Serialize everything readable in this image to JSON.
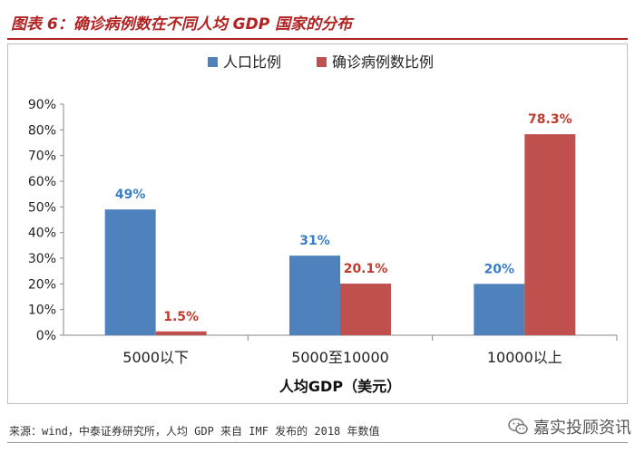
{
  "title": "图表 6：确诊病例数在不同人均 GDP 国家的分布",
  "source": "来源：wind，中泰证券研究所，人均 GDP 来自 IMF 发布的 2018 年数值",
  "watermark": "嘉实投顾资讯",
  "chart_data": {
    "type": "bar",
    "categories": [
      "5000以下",
      "5000至10000",
      "10000以上"
    ],
    "series": [
      {
        "name": "人口比例",
        "values": [
          49,
          31,
          20
        ],
        "labels": [
          "49%",
          "31%",
          "20%"
        ],
        "color": "#4f81bd",
        "label_color": "#3a7dc9"
      },
      {
        "name": "确诊病例数比例",
        "values": [
          1.5,
          20.1,
          78.3
        ],
        "labels": [
          "1.5%",
          "20.1%",
          "78.3%"
        ],
        "color": "#c0504d",
        "label_color": "#c0392b"
      }
    ],
    "xlabel": "人均GDP（美元）",
    "ylabel": "",
    "ylim": [
      0,
      90
    ],
    "yticks": [
      "0%",
      "10%",
      "20%",
      "30%",
      "40%",
      "50%",
      "60%",
      "70%",
      "80%",
      "90%"
    ],
    "legend_position": "top",
    "grid": false
  }
}
